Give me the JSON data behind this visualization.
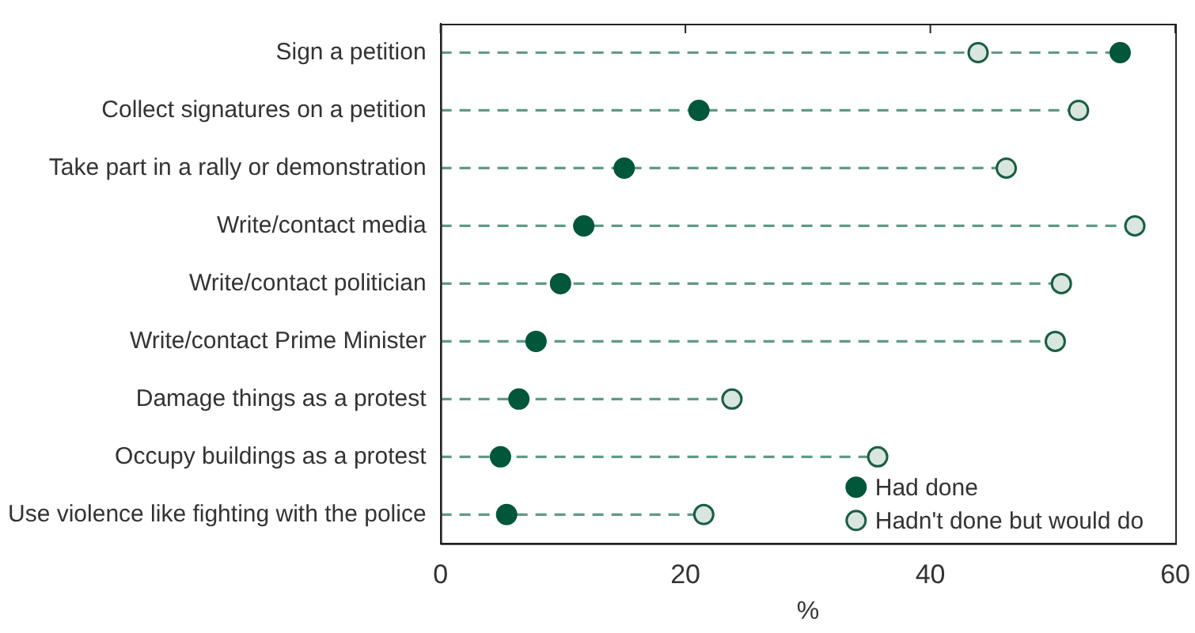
{
  "chart_data": {
    "type": "scatter",
    "orientation": "horizontal",
    "xlabel": "%",
    "categories": [
      "Sign a petition",
      "Collect signatures on a petition",
      "Take part in a rally or demonstration",
      "Write/contact media",
      "Write/contact politician",
      "Write/contact Prime Minister",
      "Damage things as a protest",
      "Occupy buildings as a protest",
      "Use violence like fighting with the police"
    ],
    "series": [
      {
        "name": "Had done",
        "color": "#00573a",
        "values": [
          55.5,
          21.1,
          15.0,
          11.7,
          9.8,
          7.8,
          6.4,
          4.9,
          5.4
        ]
      },
      {
        "name": "Hadn't done but would do",
        "color": "#d9e6df",
        "values": [
          43.9,
          52.1,
          46.2,
          56.7,
          50.7,
          50.2,
          23.8,
          35.7,
          21.5
        ]
      }
    ],
    "xlim": [
      0,
      60
    ],
    "xticks": [
      0,
      20,
      40,
      60
    ],
    "grid": false,
    "legend": "bottom right",
    "marker": "circle",
    "line_style": "dashed"
  }
}
